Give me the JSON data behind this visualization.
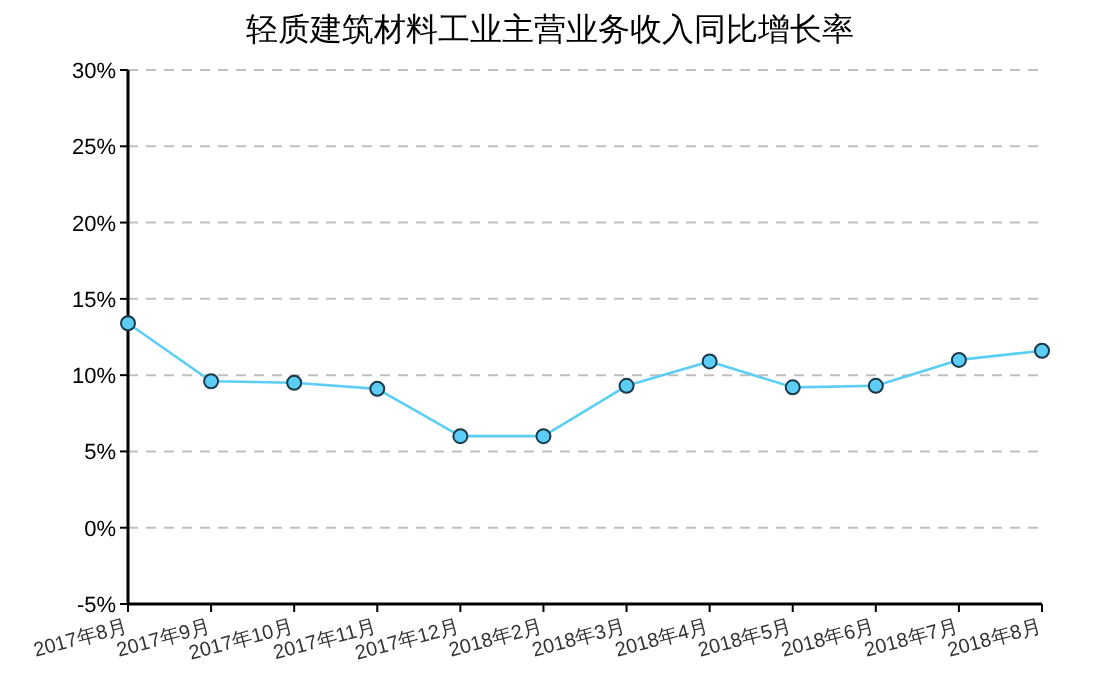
{
  "chart_data": {
    "type": "line",
    "title": "轻质建筑材料工业主营业务收入同比增长率",
    "categories": [
      "2017年8月",
      "2017年9月",
      "2017年10月",
      "2017年11月",
      "2017年12月",
      "2018年2月",
      "2018年3月",
      "2018年4月",
      "2018年5月",
      "2018年6月",
      "2018年7月",
      "2018年8月"
    ],
    "series": [
      {
        "color": "#5ccdf5",
        "values": [
          13.4,
          9.6,
          9.5,
          9.1,
          6.0,
          6.0,
          9.3,
          10.9,
          9.2,
          9.3,
          11.0,
          11.6
        ]
      }
    ],
    "ylim": [
      -5,
      30
    ],
    "yticks": [
      {
        "value": -5,
        "label": "-5%"
      },
      {
        "value": 0,
        "label": "0%"
      },
      {
        "value": 5,
        "label": "5%"
      },
      {
        "value": 10,
        "label": "10%"
      },
      {
        "value": 15,
        "label": "15%"
      },
      {
        "value": 20,
        "label": "20%"
      },
      {
        "value": 25,
        "label": "25%"
      },
      {
        "value": 30,
        "label": "30%"
      }
    ],
    "grid": "y",
    "marker": "circle",
    "line_style": "solid"
  }
}
